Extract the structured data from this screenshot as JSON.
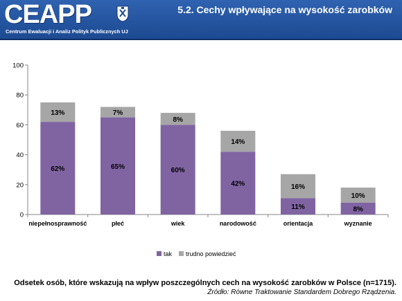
{
  "header": {
    "logo_text": "CEAPP",
    "logo_subtitle": "Centrum Ewaluacji i Analiz Polityk Publicznych UJ",
    "title": "5.2. Cechy wpływające na wysokość zarobków"
  },
  "colors": {
    "header_bg": "#1d4a92",
    "tak": "#8064a2",
    "trudno": "#a6a6a6"
  },
  "chart_data": {
    "type": "bar",
    "stacked": true,
    "categories": [
      "niepełnosprawność",
      "płeć",
      "wiek",
      "narodowość",
      "orientacja",
      "wyznanie"
    ],
    "series": [
      {
        "name": "tak",
        "values": [
          62,
          65,
          60,
          42,
          11,
          8
        ],
        "labels": [
          "62%",
          "65%",
          "60%",
          "42%",
          "11%",
          "8%"
        ]
      },
      {
        "name": "trudno powiedzieć",
        "values": [
          13,
          7,
          8,
          14,
          16,
          10
        ],
        "labels": [
          "13%",
          "7%",
          "8%",
          "14%",
          "16%",
          "10%"
        ]
      }
    ],
    "ylim": [
      0,
      100
    ],
    "yticks": [
      "0",
      "20",
      "40",
      "60",
      "80",
      "100"
    ],
    "grid": false,
    "legend_position": "bottom"
  },
  "caption": {
    "main": "Odsetek osób, które wskazują na wpływ poszczególnych cech na wysokość zarobków w Polsce (n=1715).",
    "source": "Źródło: Równe Traktowanie Standardem Dobrego Rządzenia."
  }
}
